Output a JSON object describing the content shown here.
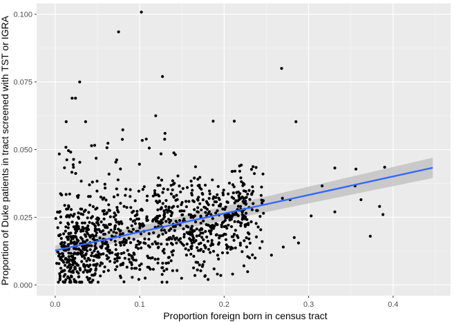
{
  "chart_data": {
    "type": "scatter",
    "xlabel": "Proportion foreign born in census tract",
    "ylabel": "Proportion of Duke patients in tract screened with TST or IGRA",
    "xlim": [
      -0.022,
      0.468
    ],
    "ylim": [
      -0.004,
      0.104
    ],
    "x_ticks": [
      0.0,
      0.1,
      0.2,
      0.3,
      0.4
    ],
    "x_tick_labels": [
      "0.0",
      "0.1",
      "0.2",
      "0.3",
      "0.4"
    ],
    "y_ticks": [
      0.0,
      0.025,
      0.05,
      0.075,
      0.1
    ],
    "y_tick_labels": [
      "0.000",
      "0.025",
      "0.050",
      "0.075",
      "0.100"
    ],
    "grid": true,
    "legend": "none",
    "colors": {
      "panel": "#ebebeb",
      "grid_major": "#ffffff",
      "points": "#000000",
      "fit_line": "#3366ff",
      "confidence_band": "#bdbdbd"
    },
    "fit": {
      "method": "linear",
      "x": [
        0.0,
        0.447
      ],
      "y": [
        0.0127,
        0.0433
      ],
      "ci_upper": [
        0.0145,
        0.047
      ],
      "ci_lower": [
        0.011,
        0.0395
      ]
    },
    "highlighted_points": [
      {
        "x": 0.102,
        "y": 0.1008
      },
      {
        "x": 0.075,
        "y": 0.0935
      },
      {
        "x": 0.268,
        "y": 0.08
      },
      {
        "x": 0.127,
        "y": 0.077
      },
      {
        "x": 0.029,
        "y": 0.075
      },
      {
        "x": 0.02,
        "y": 0.069
      },
      {
        "x": 0.024,
        "y": 0.069
      },
      {
        "x": 0.119,
        "y": 0.0625
      },
      {
        "x": 0.187,
        "y": 0.0605
      },
      {
        "x": 0.212,
        "y": 0.0605
      },
      {
        "x": 0.285,
        "y": 0.0603
      },
      {
        "x": 0.013,
        "y": 0.0603
      },
      {
        "x": 0.036,
        "y": 0.0603
      },
      {
        "x": 0.08,
        "y": 0.0573
      },
      {
        "x": 0.13,
        "y": 0.056
      },
      {
        "x": 0.39,
        "y": 0.0435
      },
      {
        "x": 0.331,
        "y": 0.0432
      },
      {
        "x": 0.356,
        "y": 0.0428
      },
      {
        "x": 0.316,
        "y": 0.0366
      },
      {
        "x": 0.355,
        "y": 0.0366
      },
      {
        "x": 0.373,
        "y": 0.018
      },
      {
        "x": 0.384,
        "y": 0.029
      },
      {
        "x": 0.388,
        "y": 0.026
      },
      {
        "x": 0.303,
        "y": 0.0255
      },
      {
        "x": 0.331,
        "y": 0.027
      },
      {
        "x": 0.362,
        "y": 0.0315
      },
      {
        "x": 0.269,
        "y": 0.032
      },
      {
        "x": 0.278,
        "y": 0.0315
      },
      {
        "x": 0.283,
        "y": 0.0175
      },
      {
        "x": 0.288,
        "y": 0.0155
      },
      {
        "x": 0.27,
        "y": 0.014
      },
      {
        "x": 0.256,
        "y": 0.011
      },
      {
        "x": 0.23,
        "y": 0.01
      },
      {
        "x": 0.245,
        "y": 0.016
      },
      {
        "x": 0.21,
        "y": 0.004
      },
      {
        "x": 0.181,
        "y": 0.002
      },
      {
        "x": 0.196,
        "y": 0.0035
      }
    ],
    "cloud": {
      "n": 1150,
      "x_range": [
        0.0,
        0.25
      ],
      "y_range": [
        0.0,
        0.058
      ],
      "note_for_render": "dense scatter of remaining observations"
    }
  }
}
